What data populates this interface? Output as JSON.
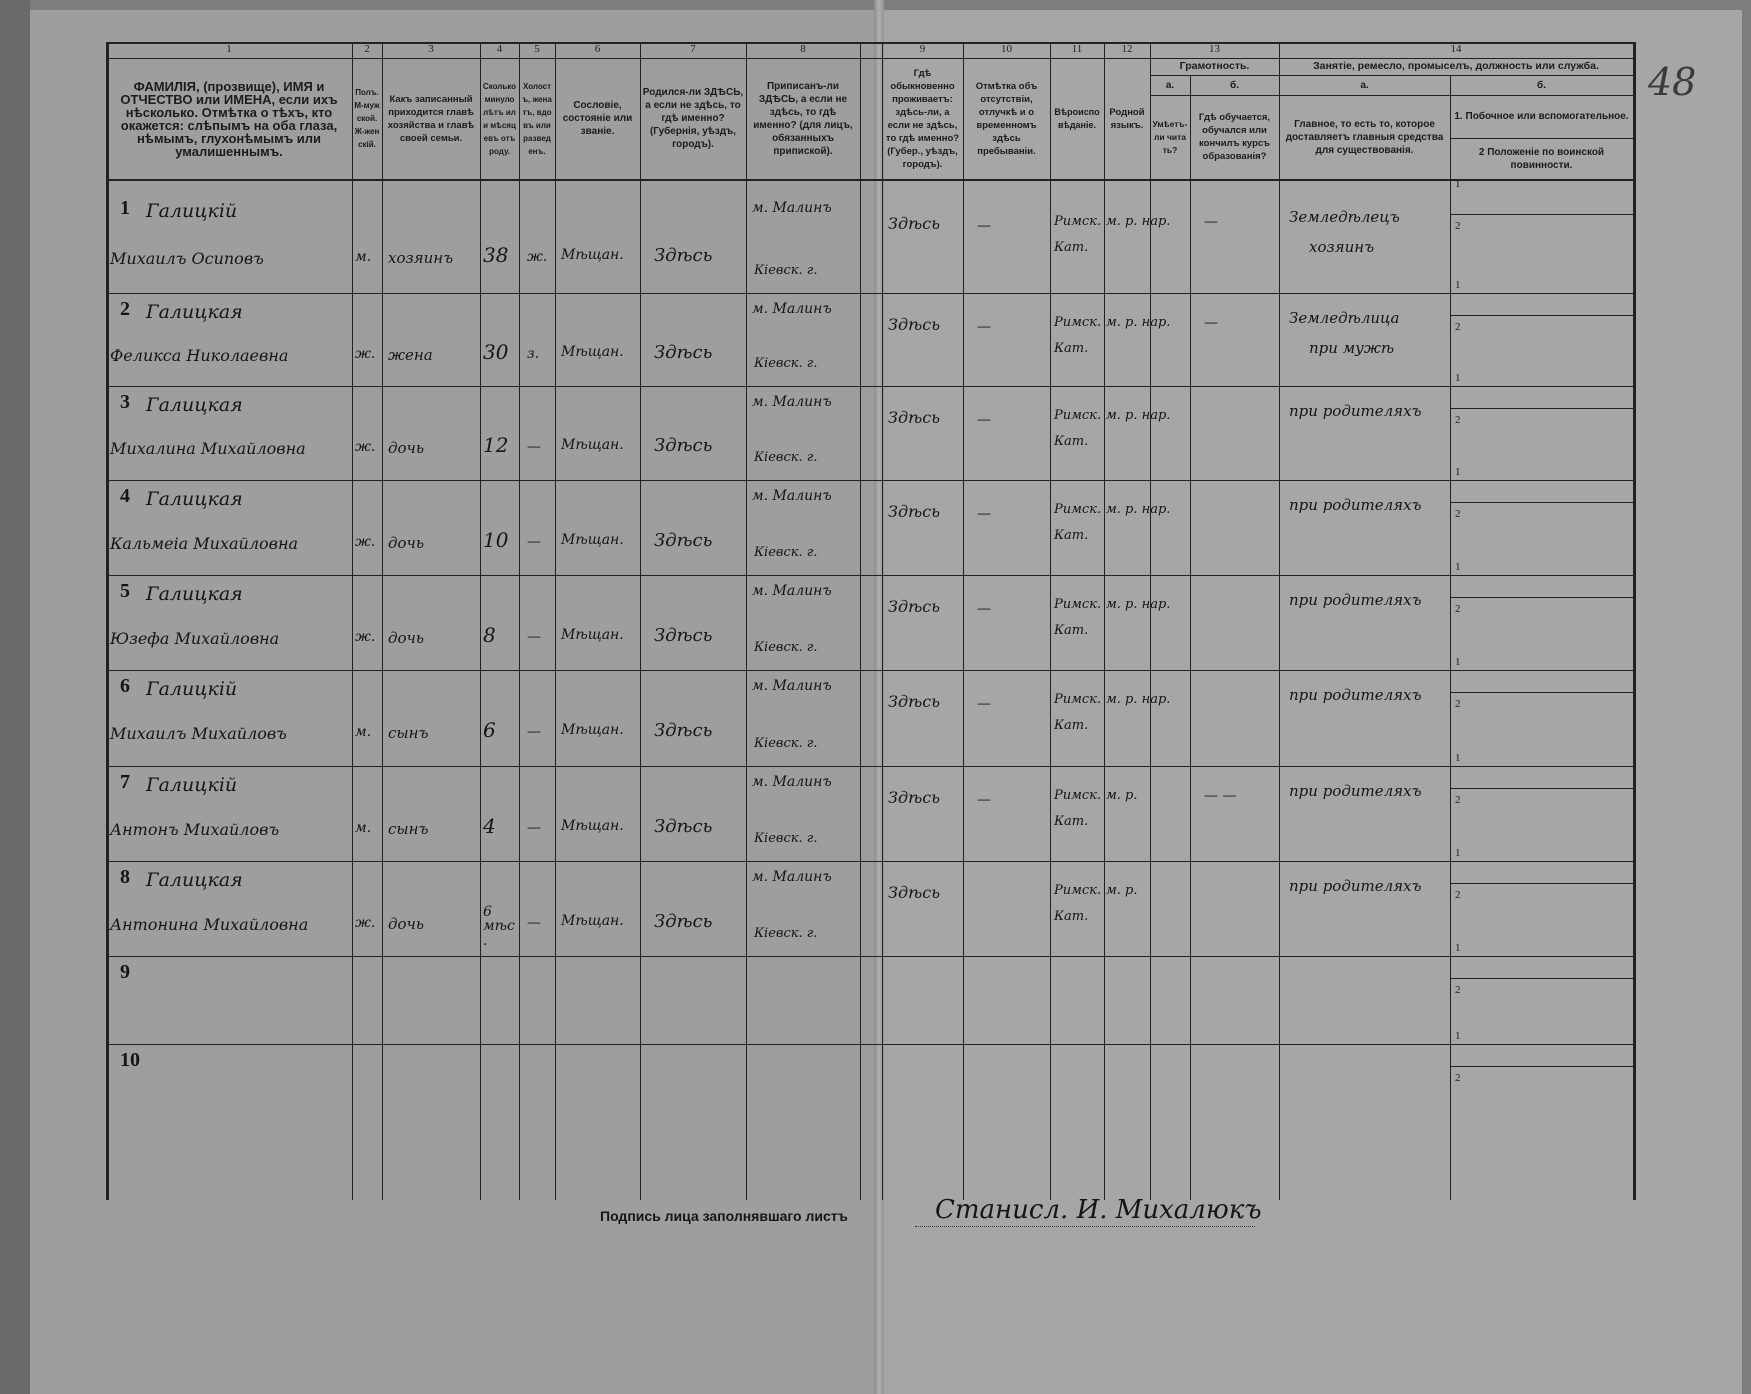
{
  "form": {
    "column_numbers": [
      "1",
      "2",
      "3",
      "4",
      "5",
      "6",
      "7",
      "8",
      "9",
      "10",
      "11",
      "12",
      "13",
      "14"
    ],
    "headers": {
      "c1": "ФАМИЛІЯ, (прозвище), ИМЯ и ОТЧЕСТВО или ИМЕНА, если ихъ нѣсколько. Отмѣтка о тѣхъ, кто окажется: слѣпымъ на оба глаза, нѣмымъ, глухонѣмымъ или умалишеннымъ.",
      "c2": "Полъ. М-мужской. Ж-женскій.",
      "c3": "Какъ записанный приходится главѣ хозяйства и главѣ своей семьи.",
      "c4": "Сколько минуло лѣтъ или мѣсяцевъ отъ роду.",
      "c5": "Холостъ, женатъ, вдовъ или разведенъ.",
      "c6": "Сословіе, состояніе или званіе.",
      "c7": "Родился-ли ЗДѢСЬ, а если не здѣсь, то гдѣ именно? (Губернія, уѣздъ, городъ).",
      "c8": "Приписанъ-ли ЗДѢСЬ, а если не здѣсь, то гдѣ именно? (для лицъ, обязанныхъ припиской).",
      "c9": "Гдѣ обыкновенно проживаетъ: здѣсь-ли, а если не здѣсь, то гдѣ именно? (Губер., уѣздъ, городъ).",
      "c10": "Отмѣтка объ отсутствіи, отлучкѣ и о временномъ здѣсь пребываніи.",
      "c11": "Вѣроисповѣданіе.",
      "c12": "Родной языкъ.",
      "c13": "Грамотность.",
      "c13a_letter": "а.",
      "c13a": "Умѣетъ-ли читать?",
      "c13b_letter": "б.",
      "c13b": "Гдѣ обучается, обучался или кончилъ курсъ образованія?",
      "c14": "Занятіе, ремесло, промыселъ, должность или служба.",
      "c14a_letter": "а.",
      "c14a": "Главное, то есть то, которое доставляетъ главныя средства для существованія.",
      "c14b_letter": "б.",
      "c14b1": "1. Побочное или вспомогательное.",
      "c14b2": "2 Положеніе по воинской повинности."
    },
    "rows": [
      {
        "n": "1",
        "surname": "Галицкій",
        "name": "Михаилъ Осиповъ",
        "sex": "м.",
        "relation": "хозяинъ",
        "age": "38",
        "marital": "ж.",
        "estate": "Мѣщан.",
        "born": "Здѣсь",
        "reg1": "м. Малинъ",
        "reg2": "Кіевск. г.",
        "residence": "Здѣсь",
        "absence": "—",
        "religion1": "Римск.",
        "religion2": "Кат.",
        "language": "м. р. нар.",
        "literacy": "—",
        "occupation1": "Земледѣлецъ",
        "occupation2": "хозяинъ"
      },
      {
        "n": "2",
        "surname": "Галицкая",
        "name": "Феликса Николаевна",
        "sex": "ж.",
        "relation": "жена",
        "age": "30",
        "marital": "з.",
        "estate": "Мѣщан.",
        "born": "Здѣсь",
        "reg1": "м. Малинъ",
        "reg2": "Кіевск. г.",
        "residence": "Здѣсь",
        "absence": "—",
        "religion1": "Римск.",
        "religion2": "Кат.",
        "language": "м. р. нар.",
        "literacy": "—",
        "occupation1": "Земледѣлица",
        "occupation2": "при мужѣ"
      },
      {
        "n": "3",
        "surname": "Галицкая",
        "name": "Михалина Михайловна",
        "sex": "ж.",
        "relation": "дочь",
        "age": "12",
        "marital": "—",
        "estate": "Мѣщан.",
        "born": "Здѣсь",
        "reg1": "м. Малинъ",
        "reg2": "Кіевск. г.",
        "residence": "Здѣсь",
        "absence": "—",
        "religion1": "Римск.",
        "religion2": "Кат.",
        "language": "м. р. нар.",
        "literacy": "",
        "occupation1": "при родителяхъ",
        "occupation2": ""
      },
      {
        "n": "4",
        "surname": "Галицкая",
        "name": "Кальмеіа Михайловна",
        "sex": "ж.",
        "relation": "дочь",
        "age": "10",
        "marital": "—",
        "estate": "Мѣщан.",
        "born": "Здѣсь",
        "reg1": "м. Малинъ",
        "reg2": "Кіевск. г.",
        "residence": "Здѣсь",
        "absence": "—",
        "religion1": "Римск.",
        "religion2": "Кат.",
        "language": "м. р. нар.",
        "literacy": "",
        "occupation1": "при родителяхъ",
        "occupation2": ""
      },
      {
        "n": "5",
        "surname": "Галицкая",
        "name": "Юзефа Михайловна",
        "sex": "ж.",
        "relation": "дочь",
        "age": "8",
        "marital": "—",
        "estate": "Мѣщан.",
        "born": "Здѣсь",
        "reg1": "м. Малинъ",
        "reg2": "Кіевск. г.",
        "residence": "Здѣсь",
        "absence": "—",
        "religion1": "Римск.",
        "religion2": "Кат.",
        "language": "м. р. нар.",
        "literacy": "",
        "occupation1": "при родителяхъ",
        "occupation2": ""
      },
      {
        "n": "6",
        "surname": "Галицкій",
        "name": "Михаилъ Михайловъ",
        "sex": "м.",
        "relation": "сынъ",
        "age": "6",
        "marital": "—",
        "estate": "Мѣщан.",
        "born": "Здѣсь",
        "reg1": "м. Малинъ",
        "reg2": "Кіевск. г.",
        "residence": "Здѣсь",
        "absence": "—",
        "religion1": "Римск.",
        "religion2": "Кат.",
        "language": "м. р. нар.",
        "literacy": "",
        "occupation1": "при родителяхъ",
        "occupation2": ""
      },
      {
        "n": "7",
        "surname": "Галицкій",
        "name": "Антонъ Михайловъ",
        "sex": "м.",
        "relation": "сынъ",
        "age": "4",
        "marital": "—",
        "estate": "Мѣщан.",
        "born": "Здѣсь",
        "reg1": "м. Малинъ",
        "reg2": "Кіевск. г.",
        "residence": "Здѣсь",
        "absence": "—",
        "religion1": "Римск.",
        "religion2": "Кат.",
        "language": "м. р.",
        "literacy": "— —",
        "occupation1": "при родителяхъ",
        "occupation2": ""
      },
      {
        "n": "8",
        "surname": "Галицкая",
        "name": "Антонина Михайловна",
        "sex": "ж.",
        "relation": "дочь",
        "age": "6 мѣс.",
        "marital": "—",
        "estate": "Мѣщан.",
        "born": "Здѣсь",
        "reg1": "м. Малинъ",
        "reg2": "Кіевск. г.",
        "residence": "Здѣсь",
        "absence": "",
        "religion1": "Римск.",
        "religion2": "Кат.",
        "language": "м. р.",
        "literacy": "",
        "occupation1": "при родителяхъ",
        "occupation2": ""
      },
      {
        "n": "9"
      },
      {
        "n": "10"
      }
    ],
    "sub_marks": [
      "1",
      "2"
    ],
    "signature_label": "Подпись лица заполнявшаго листъ",
    "signature": "Станисл. И. Михалюкъ",
    "page_number": "48"
  }
}
